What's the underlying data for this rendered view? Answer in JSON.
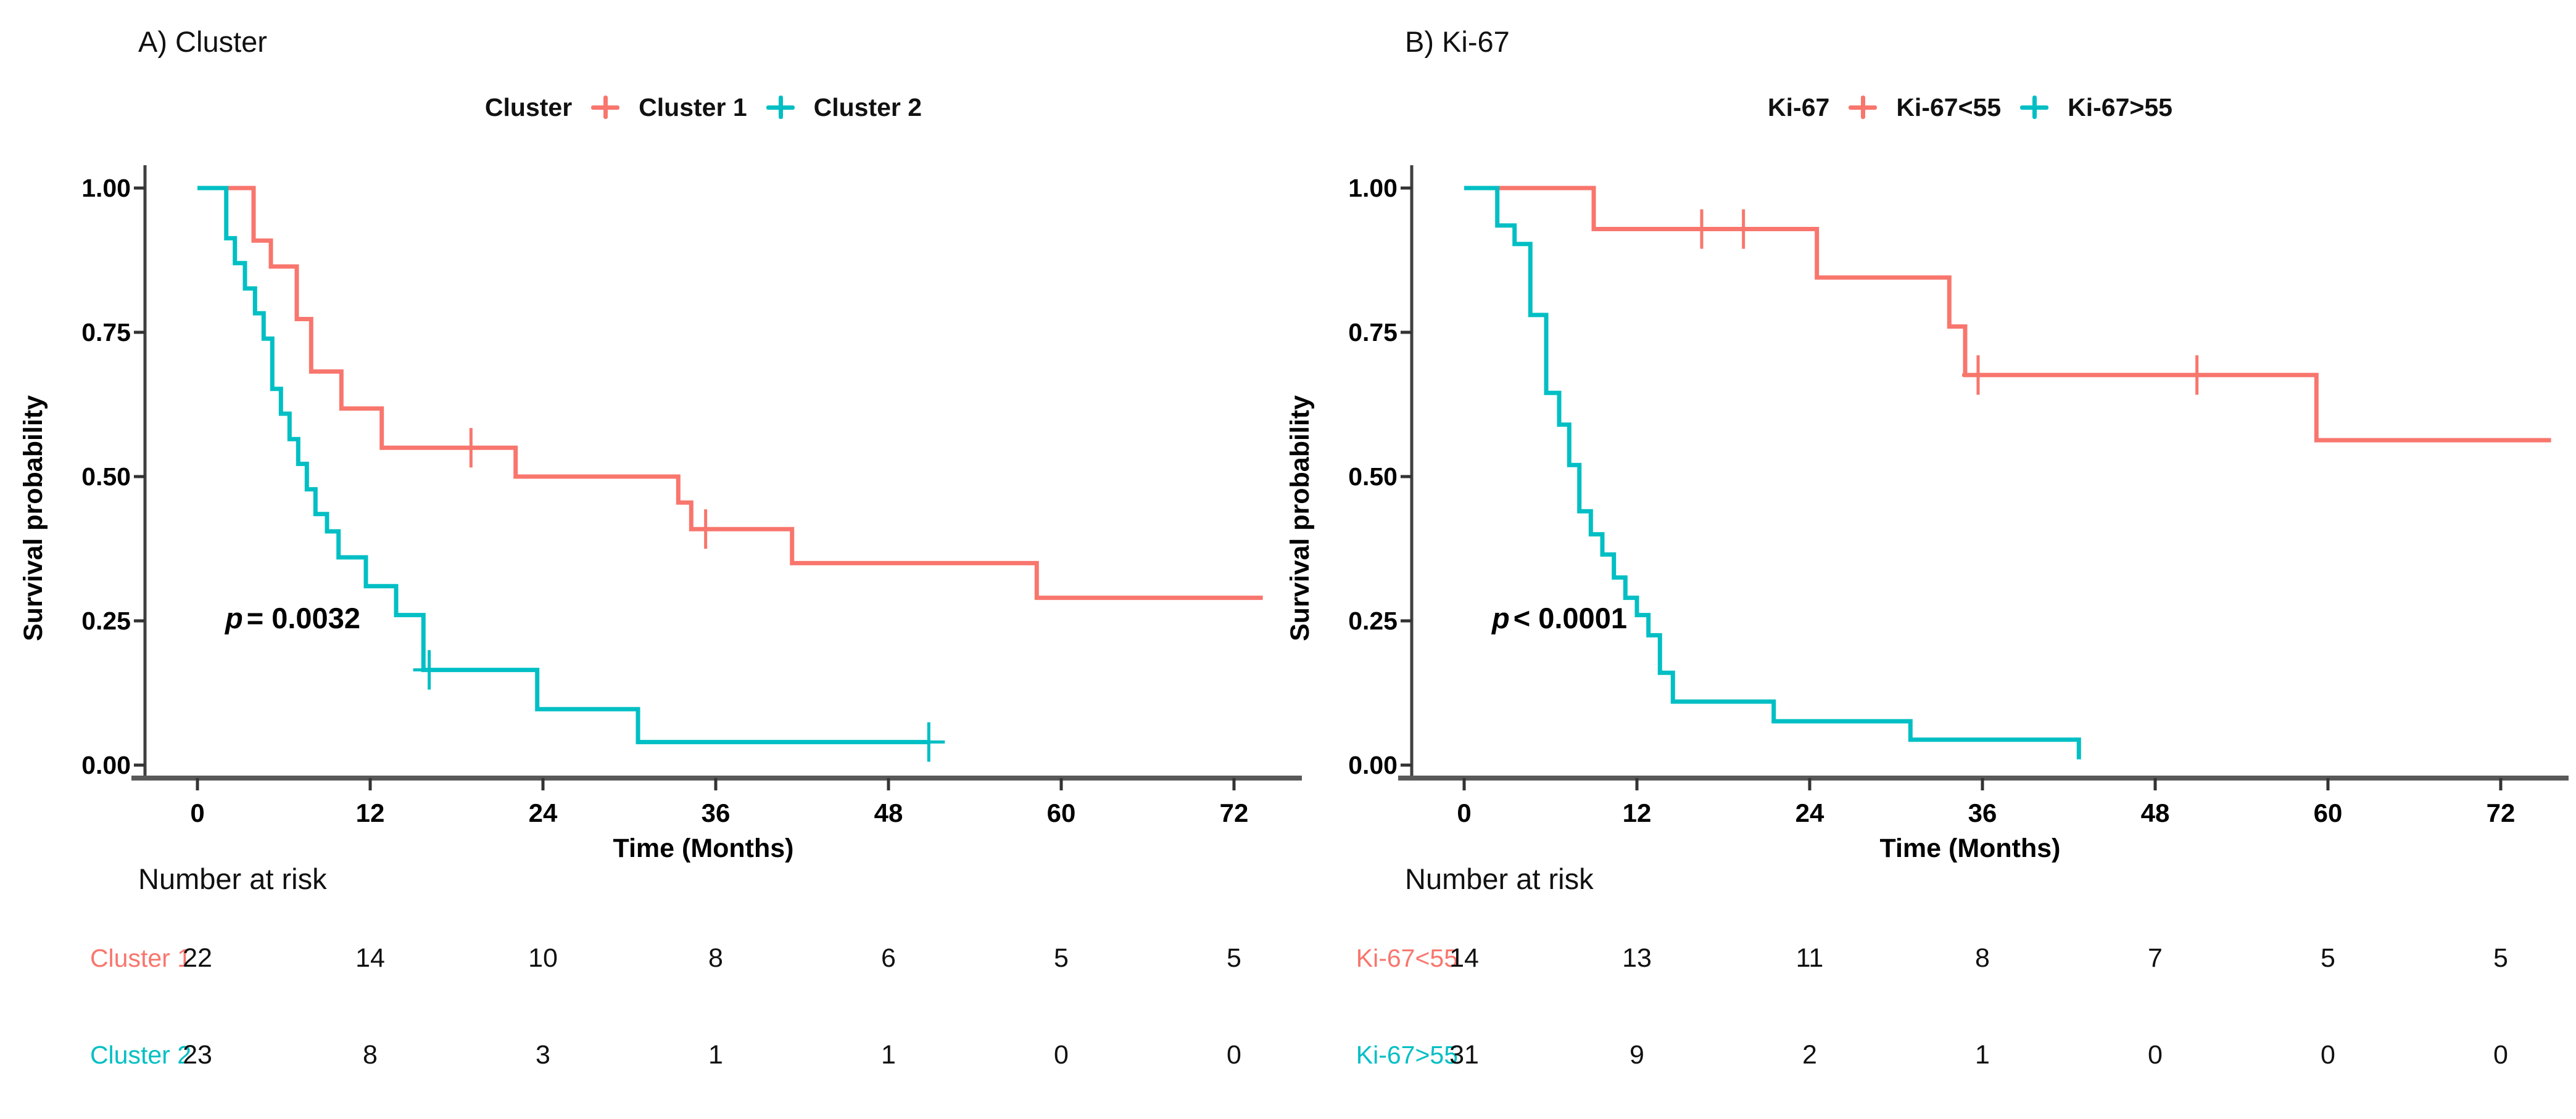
{
  "figure": {
    "time_axis_label": "Time (Months)",
    "survival_axis_label": "Survival probability",
    "risk_table_header": "Number at risk",
    "accent_red": "#F8766D",
    "accent_teal": "#00BFC4"
  },
  "chart_data": {
    "type": "line",
    "subtype": "kaplan-meier-step",
    "xlabel": "Time (Months)",
    "ylabel": "Survival probability",
    "xlim": [
      0,
      76
    ],
    "ylim": [
      0,
      1
    ],
    "x_tick_values": [
      0,
      12,
      24,
      36,
      48,
      60,
      72
    ],
    "y_tick_values": [
      1.0,
      0.75,
      0.5,
      0.25,
      0.0
    ],
    "grid": "off",
    "legend_position": "top-center",
    "panels": [
      {
        "title": "A) Cluster",
        "legend_title": "Cluster",
        "p_symbol": "p",
        "p_rest": "= 0.0032",
        "x_ticks": [
          "0",
          "12",
          "24",
          "36",
          "48",
          "60",
          "72"
        ],
        "y_ticks": [
          "1.00",
          "0.75",
          "0.50",
          "0.25",
          "0.00"
        ],
        "series": [
          {
            "name": "Cluster 1",
            "color": "#F8766D",
            "steps": [
              [
                0,
                1.0
              ],
              [
                3.9,
                0.909
              ],
              [
                5.1,
                0.864
              ],
              [
                6.9,
                0.773
              ],
              [
                7.9,
                0.682
              ],
              [
                10,
                0.618
              ],
              [
                12.8,
                0.55
              ],
              [
                22.1,
                0.5
              ],
              [
                33.4,
                0.455
              ],
              [
                34.3,
                0.409
              ],
              [
                41.3,
                0.35
              ],
              [
                58.3,
                0.29
              ]
            ],
            "end_time": 74,
            "censors": [
              [
                19,
                0.55
              ],
              [
                35.3,
                0.409
              ]
            ]
          },
          {
            "name": "Cluster 2",
            "color": "#00BFC4",
            "steps": [
              [
                0,
                1.0
              ],
              [
                2,
                0.913
              ],
              [
                2.6,
                0.87
              ],
              [
                3.3,
                0.826
              ],
              [
                4,
                0.783
              ],
              [
                4.6,
                0.739
              ],
              [
                5.2,
                0.652
              ],
              [
                5.8,
                0.609
              ],
              [
                6.4,
                0.565
              ],
              [
                7,
                0.522
              ],
              [
                7.6,
                0.478
              ],
              [
                8.2,
                0.435
              ],
              [
                9,
                0.405
              ],
              [
                9.8,
                0.36
              ],
              [
                11.7,
                0.31
              ],
              [
                13.8,
                0.26
              ],
              [
                15.7,
                0.165
              ],
              [
                23.6,
                0.097
              ],
              [
                30.6,
                0.04
              ]
            ],
            "end_time": 50.8,
            "censors": [
              [
                16.1,
                0.165
              ],
              [
                50.8,
                0.04
              ]
            ]
          }
        ],
        "risk_table": {
          "rows": [
            {
              "label": "Cluster 1",
              "color": "#F8766D",
              "values": [
                "22",
                "14",
                "10",
                "8",
                "6",
                "5",
                "5"
              ]
            },
            {
              "label": "Cluster 2",
              "color": "#00BFC4",
              "values": [
                "23",
                "8",
                "3",
                "1",
                "1",
                "0",
                "0"
              ]
            }
          ]
        }
      },
      {
        "title": "B) Ki-67",
        "legend_title": "Ki-67",
        "p_symbol": "p",
        "p_rest": "< 0.0001",
        "x_ticks": [
          "0",
          "12",
          "24",
          "36",
          "48",
          "60",
          "72"
        ],
        "y_ticks": [
          "1.00",
          "0.75",
          "0.50",
          "0.25",
          "0.00"
        ],
        "series": [
          {
            "name": "Ki-67<55",
            "color": "#F8766D",
            "steps": [
              [
                0,
                1.0
              ],
              [
                9,
                0.929
              ],
              [
                24.5,
                0.845
              ],
              [
                33.7,
                0.76
              ],
              [
                34.8,
                0.676
              ],
              [
                59.2,
                0.563
              ]
            ],
            "end_time": 75.5,
            "censors": [
              [
                16.5,
                0.929
              ],
              [
                19.4,
                0.929
              ],
              [
                35.7,
                0.676
              ],
              [
                50.9,
                0.676
              ]
            ]
          },
          {
            "name": "Ki-67>55",
            "color": "#00BFC4",
            "steps": [
              [
                0,
                1.0
              ],
              [
                2.3,
                0.935
              ],
              [
                3.5,
                0.903
              ],
              [
                4.6,
                0.78
              ],
              [
                5.7,
                0.645
              ],
              [
                6.6,
                0.59
              ],
              [
                7.3,
                0.52
              ],
              [
                8,
                0.44
              ],
              [
                8.8,
                0.4
              ],
              [
                9.6,
                0.365
              ],
              [
                10.4,
                0.325
              ],
              [
                11.2,
                0.29
              ],
              [
                12,
                0.26
              ],
              [
                12.8,
                0.225
              ],
              [
                13.6,
                0.16
              ],
              [
                14.5,
                0.11
              ],
              [
                21.5,
                0.076
              ],
              [
                31,
                0.044
              ],
              [
                42.7,
                0.01
              ]
            ],
            "end_time": 42.7,
            "censors": []
          }
        ],
        "risk_table": {
          "rows": [
            {
              "label": "Ki-67<55",
              "color": "#F8766D",
              "values": [
                "14",
                "13",
                "11",
                "8",
                "7",
                "5",
                "5"
              ]
            },
            {
              "label": "Ki-67>55",
              "color": "#00BFC4",
              "values": [
                "31",
                "9",
                "2",
                "1",
                "0",
                "0",
                "0"
              ]
            }
          ]
        }
      }
    ]
  }
}
